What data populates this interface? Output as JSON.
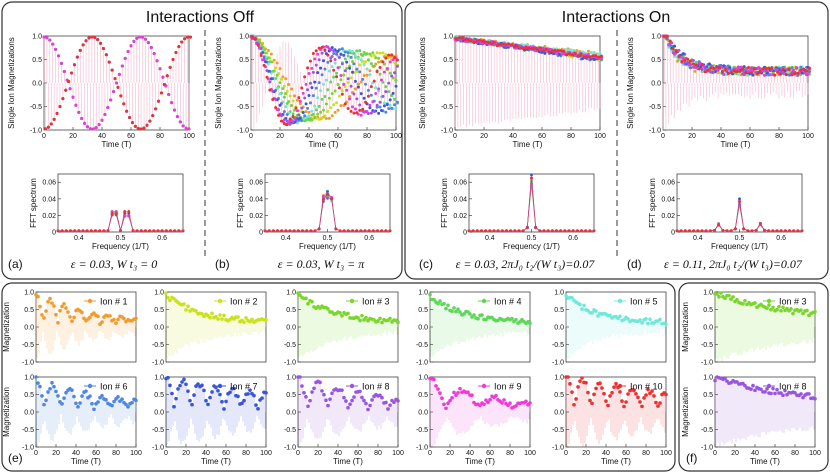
{
  "chart_data": {
    "type": "scatter",
    "headings": {
      "off": "Interactions Off",
      "on": "Interactions On"
    },
    "top_panels": [
      {
        "id": "a",
        "label": "(a)",
        "caption": "ε = 0.03,  W t₃ = 0",
        "regime": "periodic_two_groups",
        "main": {
          "xlabel": "Time (T)",
          "ylabel": "Single Ion Magnetizations",
          "xlim": [
            0,
            100
          ],
          "ylim": [
            -1,
            1
          ],
          "xticks": [
            "0",
            "20",
            "40",
            "60",
            "80",
            "100"
          ],
          "yticks": [
            "-1.0",
            "-0.5",
            "0.0",
            "0.5",
            "1.0"
          ]
        },
        "fft": {
          "xlabel": "Frequency (1/T)",
          "ylabel": "FFT spectrum",
          "xlim": [
            0.35,
            0.65
          ],
          "ylim": [
            0,
            0.07
          ],
          "xticks": [
            "0.4",
            "0.5",
            "0.6"
          ],
          "yticks": [
            "0",
            "0.02",
            "0.04",
            "0.06"
          ],
          "peaks": [
            {
              "freq": 0.485,
              "amp": 0.041
            },
            {
              "freq": 0.515,
              "amp": 0.041
            }
          ]
        }
      },
      {
        "id": "b",
        "label": "(b)",
        "caption": "ε = 0.03,  W t₃ = π",
        "regime": "dephasing",
        "main": {
          "xlabel": "Time (T)",
          "ylabel": "Single Ion Magnetizations",
          "xlim": [
            0,
            100
          ],
          "ylim": [
            -1,
            1
          ],
          "xticks": [
            "0",
            "20",
            "40",
            "60",
            "80",
            "100"
          ],
          "yticks": [
            "-1.0",
            "-0.5",
            "0.0",
            "0.5",
            "1.0"
          ]
        },
        "fft": {
          "xlabel": "Frequency (1/T)",
          "ylabel": "FFT spectrum",
          "xlim": [
            0.35,
            0.65
          ],
          "ylim": [
            0,
            0.07
          ],
          "xticks": [
            "0.4",
            "0.5",
            "0.6"
          ],
          "yticks": [
            "0",
            "0.02",
            "0.04",
            "0.06"
          ],
          "peaks": [
            {
              "freq": 0.49,
              "amp": 0.035
            },
            {
              "freq": 0.5,
              "amp": 0.038
            },
            {
              "freq": 0.51,
              "amp": 0.035
            }
          ]
        }
      },
      {
        "id": "c",
        "label": "(c)",
        "caption": "ε = 0.03,  2πJ₀ t₂/(W t₃)=0.07",
        "regime": "slow_decay",
        "main": {
          "xlabel": "Time (T)",
          "ylabel": "Single Ion Magnetizations",
          "xlim": [
            0,
            100
          ],
          "ylim": [
            -1,
            1
          ],
          "xticks": [
            "0",
            "20",
            "40",
            "60",
            "80",
            "100"
          ],
          "yticks": [
            "-1.0",
            "-0.5",
            "0.0",
            "0.5",
            "1.0"
          ]
        },
        "fft": {
          "xlabel": "Frequency (1/T)",
          "ylabel": "FFT spectrum",
          "xlim": [
            0.35,
            0.65
          ],
          "ylim": [
            0,
            0.07
          ],
          "xticks": [
            "0.4",
            "0.5",
            "0.6"
          ],
          "yticks": [
            "0",
            "0.02",
            "0.04",
            "0.06"
          ],
          "peaks": [
            {
              "freq": 0.5,
              "amp": 0.061
            }
          ]
        }
      },
      {
        "id": "d",
        "label": "(d)",
        "caption": "ε = 0.11,  2πJ₀ t₂/(W t₃)=0.07",
        "regime": "fast_decay",
        "main": {
          "xlabel": "Time (T)",
          "ylabel": "Single Ion Magnetizations",
          "xlim": [
            0,
            100
          ],
          "ylim": [
            -1,
            1
          ],
          "xticks": [
            "0",
            "20",
            "40",
            "60",
            "80",
            "100"
          ],
          "yticks": [
            "-1.0",
            "-0.5",
            "0.0",
            "0.5",
            "1.0"
          ]
        },
        "fft": {
          "xlabel": "Frequency (1/T)",
          "ylabel": "FFT spectrum",
          "xlim": [
            0.35,
            0.65
          ],
          "ylim": [
            0,
            0.07
          ],
          "xticks": [
            "0.4",
            "0.5",
            "0.6"
          ],
          "yticks": [
            "0",
            "0.02",
            "0.04",
            "0.06"
          ],
          "peaks": [
            {
              "freq": 0.5,
              "amp": 0.034
            },
            {
              "freq": 0.45,
              "amp": 0.008
            },
            {
              "freq": 0.55,
              "amp": 0.008
            }
          ]
        }
      }
    ],
    "ion_panels": {
      "label_e": "(e)",
      "label_f": "(f)",
      "xlabel": "Time (T)",
      "ylabel": "Magnetization",
      "xticks": [
        "0",
        "20",
        "40",
        "60",
        "80",
        "100"
      ],
      "yticks": [
        "-1.0",
        "-0.5",
        "0.0",
        "0.5",
        "1.0"
      ],
      "xlim": [
        0,
        100
      ],
      "ylim": [
        -1,
        1
      ],
      "ions": [
        {
          "legend": "Ion # 1",
          "color": "#f39a2b",
          "amp0": 0.85,
          "decay": 0.02,
          "beat": 0.035
        },
        {
          "legend": "Ion # 2",
          "color": "#c9e21a",
          "amp0": 0.8,
          "decay": 0.03,
          "beat": 0.0
        },
        {
          "legend": "Ion # 3",
          "color": "#7ad62a",
          "amp0": 0.8,
          "decay": 0.028,
          "beat": 0.0
        },
        {
          "legend": "Ion # 4",
          "color": "#5fd65a",
          "amp0": 0.75,
          "decay": 0.03,
          "beat": 0.0
        },
        {
          "legend": "Ion # 5",
          "color": "#6fe8d8",
          "amp0": 0.8,
          "decay": 0.035,
          "beat": 0.0
        },
        {
          "legend": "Ion # 6",
          "color": "#4f86e0",
          "amp0": 0.85,
          "decay": 0.015,
          "beat": 0.03
        },
        {
          "legend": "Ion # 7",
          "color": "#3a55d8",
          "amp0": 0.9,
          "decay": 0.008,
          "beat": 0.03
        },
        {
          "legend": "Ion # 8",
          "color": "#9a55e0",
          "amp0": 0.9,
          "decay": 0.012,
          "beat": 0.025
        },
        {
          "legend": "Ion # 9",
          "color": "#ef3ad8",
          "amp0": 0.9,
          "decay": 0.018,
          "beat": 0.015
        },
        {
          "legend": "Ion # 10",
          "color": "#ee3030",
          "amp0": 0.95,
          "decay": 0.008,
          "beat": 0.03
        }
      ],
      "f_ions": [
        {
          "legend": "Ion # 3",
          "color": "#7ad62a",
          "amp0": 0.85,
          "decay": 0.012,
          "beat": 0.0
        },
        {
          "legend": "Ion # 8",
          "color": "#9a55e0",
          "amp0": 0.85,
          "decay": 0.01,
          "beat": 0.0
        }
      ]
    },
    "series_colors": [
      "#f39a2b",
      "#c9e21a",
      "#7ad62a",
      "#5fd65a",
      "#6fe8d8",
      "#4f86e0",
      "#3a55d8",
      "#9a55e0",
      "#ef3ad8",
      "#ee3030"
    ]
  }
}
